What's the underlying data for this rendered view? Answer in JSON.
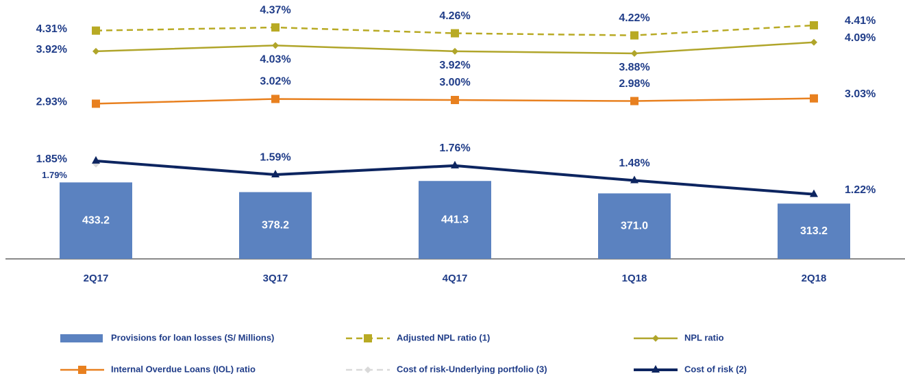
{
  "chart_data": {
    "type": "bar",
    "categories": [
      "2Q17",
      "3Q17",
      "4Q17",
      "1Q18",
      "2Q18"
    ],
    "ylim": [
      0,
      1350
    ],
    "y2lim": [
      0,
      4.5
    ],
    "series": [
      {
        "name": "Provisions for loan losses (S/ Millions)",
        "type": "bar",
        "color": "#5b82c0",
        "values": [
          433.2,
          378.2,
          441.3,
          371.0,
          313.2
        ],
        "value_labels": [
          "433.2",
          "378.2",
          "441.3",
          "371.0",
          "313.2"
        ]
      },
      {
        "name": "Adjusted NPL ratio (1)",
        "type": "line",
        "axis": "y2",
        "color": "#b8aa24",
        "dashed": true,
        "marker": "square",
        "values": [
          4.31,
          4.37,
          4.26,
          4.22,
          4.41
        ],
        "value_labels": [
          "4.31%",
          "4.37%",
          "4.26%",
          "4.22%",
          "4.41%"
        ]
      },
      {
        "name": "NPL ratio",
        "type": "line",
        "axis": "y2",
        "color": "#b0a52a",
        "dashed": false,
        "marker": "diamond",
        "values": [
          3.92,
          4.03,
          3.92,
          3.88,
          4.09
        ],
        "value_labels": [
          "3.92%",
          "4.03%",
          "3.92%",
          "3.88%",
          "4.09%"
        ]
      },
      {
        "name": "Internal Overdue Loans (IOL) ratio",
        "type": "line",
        "axis": "y2",
        "color": "#e8801f",
        "dashed": false,
        "marker": "square",
        "values": [
          2.93,
          3.02,
          3.0,
          2.98,
          3.03
        ],
        "value_labels": [
          "2.93%",
          "3.02%",
          "3.00%",
          "2.98%",
          "3.03%"
        ]
      },
      {
        "name": "Cost of risk-Underlying portfolio (3)",
        "type": "line",
        "axis": "y2",
        "color": "#d9d9d9",
        "dashed": true,
        "marker": "diamond",
        "values": [
          1.79,
          null,
          null,
          null,
          null
        ],
        "value_labels": [
          "1.79%",
          null,
          null,
          null,
          null
        ]
      },
      {
        "name": "Cost of risk (2)",
        "type": "line",
        "axis": "y2",
        "color": "#0d2560",
        "dashed": false,
        "marker": "triangle",
        "values": [
          1.85,
          1.59,
          1.76,
          1.48,
          1.22
        ],
        "value_labels": [
          "1.85%",
          "1.59%",
          "1.76%",
          "1.48%",
          "1.22%"
        ]
      }
    ]
  }
}
